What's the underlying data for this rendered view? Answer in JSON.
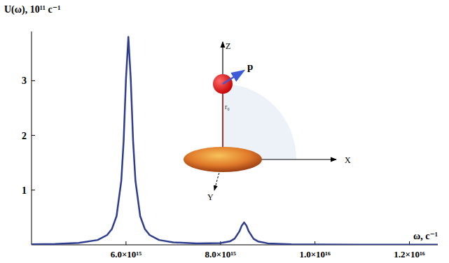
{
  "chart_data": {
    "type": "line",
    "y_label": "U(ω), 10¹¹ c⁻¹",
    "x_label": "ω, c⁻¹",
    "color": "#2f3d8f",
    "x": [
      4000000000000000.0,
      4500000000000000.0,
      5000000000000000.0,
      5400000000000000.0,
      5600000000000000.0,
      5700000000000000.0,
      5800000000000000.0,
      5900000000000000.0,
      5950000000000000.0,
      6000000000000000.0,
      6050000000000000.0,
      6100000000000000.0,
      6150000000000000.0,
      6200000000000000.0,
      6300000000000000.0,
      6400000000000000.0,
      6500000000000000.0,
      6700000000000000.0,
      7000000000000000.0,
      7500000000000000.0,
      8000000000000000.0,
      8200000000000000.0,
      8300000000000000.0,
      8400000000000000.0,
      8450000000000000.0,
      8500000000000000.0,
      8550000000000000.0,
      8600000000000000.0,
      8700000000000000.0,
      8800000000000000.0,
      9000000000000000.0,
      9500000000000000.0,
      1e+16,
      1.1e+16,
      1.2e+16,
      1.26e+16
    ],
    "values": [
      0.01,
      0.016,
      0.034,
      0.088,
      0.179,
      0.287,
      0.524,
      1.17,
      1.9,
      3.04,
      3.8,
      3.04,
      1.9,
      1.17,
      0.524,
      0.287,
      0.179,
      0.088,
      0.044,
      0.024,
      0.032,
      0.063,
      0.113,
      0.244,
      0.35,
      0.41,
      0.35,
      0.244,
      0.11,
      0.06,
      0.027,
      0.009,
      0.005,
      0.003,
      0.002,
      0.002
    ],
    "xlim": [
      4000000000000000.0,
      1.26e+16
    ],
    "xticks": [
      {
        "value": 6000000000000000.0,
        "label": "6.0×10¹⁵"
      },
      {
        "value": 8000000000000000.0,
        "label": "8.0×10¹⁵"
      },
      {
        "value": 1e+16,
        "label": "1.0×10¹⁶"
      },
      {
        "value": 1.2e+16,
        "label": "1.2×10¹⁶"
      }
    ],
    "ylim": [
      0,
      3.9
    ],
    "yticks": [
      1,
      2,
      3
    ],
    "grid": false,
    "annotations": [
      "Z",
      "X",
      "Y",
      "p",
      "r₀"
    ]
  }
}
